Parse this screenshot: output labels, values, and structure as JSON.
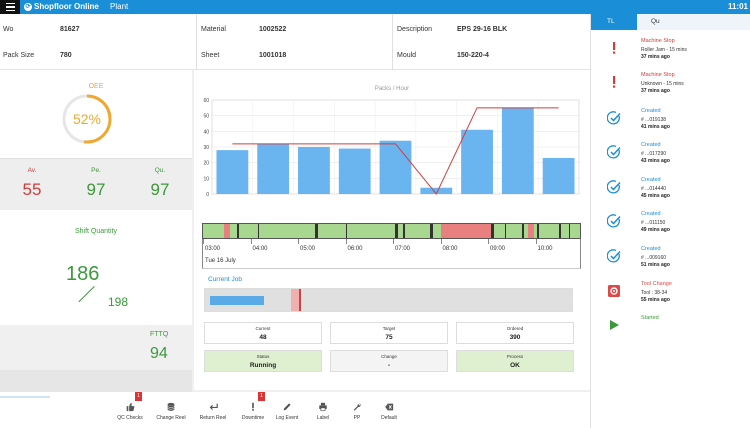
{
  "app": {
    "brand": "Shopfloor Online",
    "plant": "Plant",
    "clock": "11:01"
  },
  "info": {
    "wo_label": "Wo",
    "wo_value": "81627",
    "pack_size_label": "Pack Size",
    "pack_size_value": "780",
    "material_label": "Material",
    "material_value": "1002522",
    "sheet_label": "Sheet",
    "sheet_value": "1001018",
    "description_label": "Description",
    "description_value": "EPS 29-16 BLK",
    "mould_label": "Mould",
    "mould_value": "150-220-4"
  },
  "oee": {
    "title": "OEE",
    "value": "52%",
    "fraction": 0.52,
    "color": "#f0a830"
  },
  "ape": [
    {
      "label": "Av.",
      "value": "55",
      "color": "#d33b3b"
    },
    {
      "label": "Pe.",
      "value": "97",
      "color": "#3a9a3a"
    },
    {
      "label": "Qu.",
      "value": "97",
      "color": "#3a9a3a"
    }
  ],
  "shift": {
    "title": "Shift Quantity",
    "done": "186",
    "target": "198"
  },
  "fttq": {
    "label": "FTTQ",
    "value": "94"
  },
  "chart_data": {
    "type": "bar",
    "title": "Packs / Hour",
    "ylim": [
      0,
      60
    ],
    "yticks": [
      0,
      10,
      20,
      30,
      40,
      50,
      60
    ],
    "values": [
      28,
      32,
      30,
      29,
      34,
      4,
      41,
      55,
      23
    ],
    "target_line": [
      32,
      32,
      32,
      32,
      32,
      0,
      55,
      55,
      55
    ],
    "bar_color": "#6ab4f0",
    "line_color": "#d33b3b",
    "grid": true
  },
  "timeline": {
    "ticks": [
      "03:00",
      "04:00",
      "05:00",
      "06:00",
      "07:00",
      "08:00",
      "09:00",
      "10:00"
    ],
    "date": "Tue 16 July"
  },
  "job": {
    "title": "Current Job",
    "progress": 0.15,
    "current_label": "Current",
    "current_value": "48",
    "target_label": "Target",
    "target_value": "75",
    "ordered_label": "Ordered",
    "ordered_value": "390",
    "status_label": "Status",
    "status_value": "Running",
    "change_label": "Change",
    "change_value": "-",
    "process_label": "Process",
    "process_value": "OK"
  },
  "tabs": {
    "tl": "TL",
    "qu": "Qu"
  },
  "events": [
    {
      "type": "stop",
      "title": "Machine Stop",
      "detail": "Roller Jam - 15 mins",
      "time": "37 mins ago",
      "color": "#d33b3b",
      "icon": "exclamation-icon"
    },
    {
      "type": "stop",
      "title": "Machine Stop",
      "detail": "Unknown - 15 mins",
      "time": "37 mins ago",
      "color": "#d33b3b",
      "icon": "exclamation-icon"
    },
    {
      "type": "created",
      "title": "Created",
      "detail": "# ...019138",
      "time": "41 mins ago",
      "color": "#1a8fd8",
      "icon": "check-circle-icon"
    },
    {
      "type": "created",
      "title": "Created",
      "detail": "# ...017290",
      "time": "43 mins ago",
      "color": "#1a8fd8",
      "icon": "check-circle-icon"
    },
    {
      "type": "created",
      "title": "Created",
      "detail": "# ...014440",
      "time": "45 mins ago",
      "color": "#1a8fd8",
      "icon": "check-circle-icon"
    },
    {
      "type": "created",
      "title": "Created",
      "detail": "# ...011150",
      "time": "49 mins ago",
      "color": "#1a8fd8",
      "icon": "check-circle-icon"
    },
    {
      "type": "created",
      "title": "Created",
      "detail": "# ...009160",
      "time": "51 mins ago",
      "color": "#1a8fd8",
      "icon": "check-circle-icon"
    },
    {
      "type": "tool",
      "title": "Tool Change",
      "detail": "Tool : 38-34",
      "time": "55 mins ago",
      "color": "#e04848",
      "icon": "gear-icon"
    },
    {
      "type": "started",
      "title": "Started",
      "detail": "",
      "time": "",
      "color": "#3a9a3a",
      "icon": "play-icon"
    }
  ],
  "footer": [
    {
      "label": "QC Checks",
      "icon": "thumbs-up-icon",
      "badge": "1"
    },
    {
      "label": "Change Reel",
      "icon": "database-icon",
      "badge": ""
    },
    {
      "label": "Return Reel",
      "icon": "return-arrow-icon",
      "badge": ""
    },
    {
      "label": "Downtime",
      "icon": "exclamation-icon",
      "badge": "1"
    },
    {
      "label": "Log Event",
      "icon": "pencil-icon",
      "badge": ""
    },
    {
      "label": "Label",
      "icon": "printer-icon",
      "badge": ""
    },
    {
      "label": "PP",
      "icon": "wrench-icon",
      "badge": ""
    },
    {
      "label": "Default",
      "icon": "backspace-icon",
      "badge": ""
    }
  ]
}
